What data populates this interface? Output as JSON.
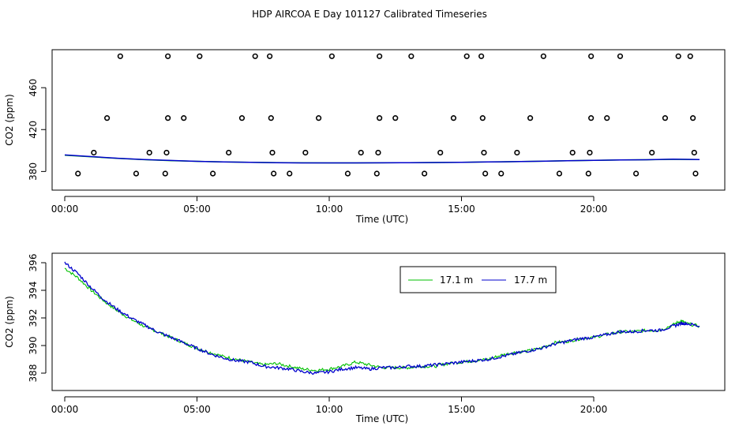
{
  "title": "HDP AIRCOA E  Day 101127  Calibrated Timeseries",
  "colors": {
    "green": "#00c000",
    "blue": "#0000cc",
    "black": "#000000"
  },
  "chart_data": [
    {
      "type": "scatter",
      "xlabel": "Time (UTC)",
      "ylabel": "CO2 (ppm)",
      "xlim": [
        0,
        24
      ],
      "ylim": [
        372,
        494
      ],
      "xticks": [
        0,
        5,
        10,
        15,
        20
      ],
      "xtick_labels": [
        "00:00",
        "05:00",
        "10:00",
        "15:00",
        "20:00"
      ],
      "yticks": [
        380,
        420,
        460
      ],
      "ytick_labels": [
        "380",
        "420",
        "460"
      ],
      "points": [
        [
          0.5,
          378
        ],
        [
          1.1,
          398
        ],
        [
          1.6,
          431
        ],
        [
          2.1,
          490
        ],
        [
          2.7,
          378
        ],
        [
          3.2,
          398
        ],
        [
          3.8,
          378
        ],
        [
          3.85,
          398
        ],
        [
          3.9,
          431
        ],
        [
          3.9,
          490
        ],
        [
          4.5,
          431
        ],
        [
          5.1,
          490
        ],
        [
          5.6,
          378
        ],
        [
          6.2,
          398
        ],
        [
          6.7,
          431
        ],
        [
          7.2,
          490
        ],
        [
          7.75,
          490
        ],
        [
          7.8,
          431
        ],
        [
          7.85,
          398
        ],
        [
          7.9,
          378
        ],
        [
          8.5,
          378
        ],
        [
          9.1,
          398
        ],
        [
          9.6,
          431
        ],
        [
          10.1,
          490
        ],
        [
          10.7,
          378
        ],
        [
          11.2,
          398
        ],
        [
          11.8,
          378
        ],
        [
          11.85,
          398
        ],
        [
          11.9,
          431
        ],
        [
          11.9,
          490
        ],
        [
          12.5,
          431
        ],
        [
          13.1,
          490
        ],
        [
          13.6,
          378
        ],
        [
          14.2,
          398
        ],
        [
          14.7,
          431
        ],
        [
          15.2,
          490
        ],
        [
          15.75,
          490
        ],
        [
          15.8,
          431
        ],
        [
          15.85,
          398
        ],
        [
          15.9,
          378
        ],
        [
          16.5,
          378
        ],
        [
          17.1,
          398
        ],
        [
          17.6,
          431
        ],
        [
          18.1,
          490
        ],
        [
          18.7,
          378
        ],
        [
          19.2,
          398
        ],
        [
          19.8,
          378
        ],
        [
          19.85,
          398
        ],
        [
          19.9,
          431
        ],
        [
          19.9,
          490
        ],
        [
          20.5,
          431
        ],
        [
          21.0,
          490
        ],
        [
          21.6,
          378
        ],
        [
          22.2,
          398
        ],
        [
          22.7,
          431
        ],
        [
          23.2,
          490
        ],
        [
          23.65,
          490
        ],
        [
          23.75,
          431
        ],
        [
          23.8,
          398
        ],
        [
          23.85,
          378
        ]
      ],
      "series": [
        {
          "color": "#00c000",
          "x": [
            0,
            1,
            2,
            3,
            4,
            5,
            6,
            7,
            8,
            9,
            10,
            11,
            12,
            13,
            14,
            15,
            16,
            17,
            18,
            19,
            20,
            21,
            22,
            23,
            24
          ],
          "y": [
            395.5,
            394,
            392.5,
            391.3,
            390.4,
            389.7,
            389.2,
            388.8,
            388.5,
            388.3,
            388.2,
            388.2,
            388.3,
            388.4,
            388.6,
            388.8,
            389.1,
            389.4,
            389.8,
            390.2,
            390.6,
            391,
            391.2,
            391.6,
            391.4
          ]
        },
        {
          "color": "#0000cc",
          "x": [
            0,
            1,
            2,
            3,
            4,
            5,
            6,
            7,
            8,
            9,
            10,
            11,
            12,
            13,
            14,
            15,
            16,
            17,
            18,
            19,
            20,
            21,
            22,
            23,
            24
          ],
          "y": [
            395.8,
            394.2,
            392.6,
            391.4,
            390.5,
            389.7,
            389.2,
            388.7,
            388.4,
            388.2,
            388.2,
            388.2,
            388.3,
            388.4,
            388.6,
            388.8,
            389.1,
            389.4,
            389.8,
            390.2,
            390.6,
            391,
            391.2,
            391.7,
            391.4
          ]
        }
      ]
    },
    {
      "type": "line",
      "xlabel": "Time (UTC)",
      "ylabel": "CO2 (ppm)",
      "xlim": [
        0,
        24
      ],
      "ylim": [
        387.6,
        396.4
      ],
      "xticks": [
        0,
        5,
        10,
        15,
        20
      ],
      "xtick_labels": [
        "00:00",
        "05:00",
        "10:00",
        "15:00",
        "20:00"
      ],
      "yticks": [
        388,
        390,
        392,
        394,
        396
      ],
      "ytick_labels": [
        "388",
        "390",
        "392",
        "394",
        "396"
      ],
      "legend": {
        "position": "top-right",
        "entries": [
          "17.1 m",
          "17.7 m"
        ]
      },
      "series": [
        {
          "name": "17.1 m",
          "color": "#00c000",
          "x": [
            0,
            0.5,
            1,
            1.5,
            2,
            2.5,
            3,
            3.5,
            4,
            4.5,
            5,
            5.5,
            6,
            6.5,
            7,
            7.5,
            8,
            8.5,
            9,
            9.5,
            10,
            10.5,
            11,
            11.5,
            12,
            12.5,
            13,
            13.5,
            14,
            14.5,
            15,
            15.5,
            16,
            16.5,
            17,
            17.5,
            18,
            18.5,
            19,
            19.5,
            20,
            20.5,
            21,
            21.5,
            22,
            22.5,
            23,
            23.3,
            23.5,
            24
          ],
          "y": [
            395.6,
            394.9,
            394.0,
            393.2,
            392.5,
            391.9,
            391.4,
            391.0,
            390.6,
            390.2,
            389.8,
            389.5,
            389.2,
            389.0,
            388.8,
            388.6,
            388.7,
            388.5,
            388.3,
            388.2,
            388.3,
            388.5,
            388.8,
            388.6,
            388.4,
            388.4,
            388.4,
            388.5,
            388.5,
            388.7,
            388.8,
            388.9,
            389.0,
            389.3,
            389.5,
            389.6,
            389.8,
            390.2,
            390.3,
            390.5,
            390.6,
            390.8,
            391.0,
            391.0,
            391.1,
            391.1,
            391.5,
            391.8,
            391.6,
            391.4
          ]
        },
        {
          "name": "17.7 m",
          "color": "#0000cc",
          "x": [
            0,
            0.5,
            1,
            1.5,
            2,
            2.5,
            3,
            3.5,
            4,
            4.5,
            5,
            5.5,
            6,
            6.5,
            7,
            7.5,
            8,
            8.5,
            9,
            9.5,
            10,
            10.5,
            11,
            11.5,
            12,
            12.5,
            13,
            13.5,
            14,
            14.5,
            15,
            15.5,
            16,
            16.5,
            17,
            17.5,
            18,
            18.5,
            19,
            19.5,
            20,
            20.5,
            21,
            21.5,
            22,
            22.5,
            23,
            23.3,
            23.5,
            24
          ],
          "y": [
            396.0,
            395.2,
            394.2,
            393.3,
            392.6,
            392.0,
            391.5,
            391.0,
            390.6,
            390.2,
            389.8,
            389.4,
            389.1,
            388.9,
            388.8,
            388.5,
            388.4,
            388.3,
            388.1,
            388.0,
            388.1,
            388.3,
            388.4,
            388.3,
            388.4,
            388.4,
            388.5,
            388.5,
            388.6,
            388.7,
            388.8,
            388.9,
            389.0,
            389.2,
            389.4,
            389.6,
            389.8,
            390.1,
            390.3,
            390.5,
            390.6,
            390.8,
            391.0,
            391.0,
            391.1,
            391.1,
            391.4,
            391.6,
            391.6,
            391.4
          ]
        }
      ]
    }
  ]
}
